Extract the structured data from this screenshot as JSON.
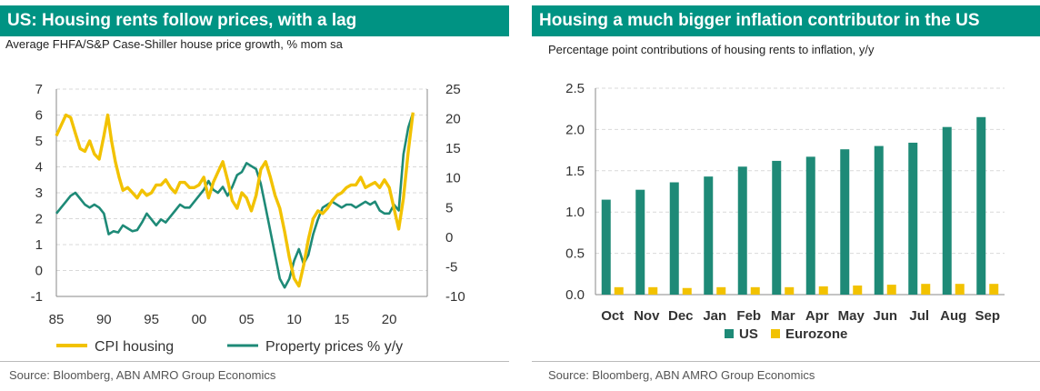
{
  "colors": {
    "teal": "#1e8a77",
    "yellow": "#f2c200",
    "title_bg": "#009383"
  },
  "left": {
    "title": "US: Housing rents follow prices, with a lag",
    "subtitle": "Average FHFA/S&P Case-Shiller house price growth, % mom sa",
    "source": "Source: Bloomberg, ABN AMRO Group Economics"
  },
  "right": {
    "title": "Housing a much bigger inflation contributor in the US",
    "subtitle": "Percentage point contributions of housing rents to inflation, y/y",
    "source": "Source:  Bloomberg, ABN AMRO Group Economics"
  },
  "chart_data": [
    {
      "type": "line",
      "x_ticks": [
        "85",
        "90",
        "95",
        "00",
        "05",
        "10",
        "15",
        "20"
      ],
      "xlim": [
        1985,
        2024
      ],
      "y_left_ticks": [
        "7",
        "6",
        "5",
        "4",
        "3",
        "2",
        "1",
        "0",
        "-1"
      ],
      "ylim_left": [
        -1,
        7
      ],
      "y_right_ticks": [
        "25",
        "20",
        "15",
        "10",
        "5",
        "0",
        "-5",
        "-10"
      ],
      "ylim_right": [
        -10,
        25
      ],
      "series": [
        {
          "name": "CPI housing",
          "axis": "left",
          "color": "#f2c200",
          "points": [
            [
              1985.0,
              5.2
            ],
            [
              1985.5,
              5.6
            ],
            [
              1986.0,
              6.0
            ],
            [
              1986.5,
              5.9
            ],
            [
              1987.0,
              5.3
            ],
            [
              1987.5,
              4.7
            ],
            [
              1988.0,
              4.6
            ],
            [
              1988.5,
              5.0
            ],
            [
              1989.0,
              4.5
            ],
            [
              1989.5,
              4.3
            ],
            [
              1990.0,
              5.2
            ],
            [
              1990.4,
              6.0
            ],
            [
              1990.8,
              5.0
            ],
            [
              1991.2,
              4.2
            ],
            [
              1991.6,
              3.6
            ],
            [
              1992.0,
              3.1
            ],
            [
              1992.5,
              3.2
            ],
            [
              1993.0,
              3.0
            ],
            [
              1993.5,
              2.8
            ],
            [
              1994.0,
              3.1
            ],
            [
              1994.5,
              2.9
            ],
            [
              1995.0,
              3.0
            ],
            [
              1995.5,
              3.3
            ],
            [
              1996.0,
              3.3
            ],
            [
              1996.5,
              3.5
            ],
            [
              1997.0,
              3.2
            ],
            [
              1997.5,
              3.0
            ],
            [
              1998.0,
              3.4
            ],
            [
              1998.5,
              3.4
            ],
            [
              1999.0,
              3.2
            ],
            [
              1999.5,
              3.2
            ],
            [
              2000.0,
              3.3
            ],
            [
              2000.5,
              3.6
            ],
            [
              2001.0,
              2.8
            ],
            [
              2001.5,
              3.4
            ],
            [
              2002.0,
              3.8
            ],
            [
              2002.5,
              4.2
            ],
            [
              2003.0,
              3.5
            ],
            [
              2003.5,
              2.7
            ],
            [
              2004.0,
              2.4
            ],
            [
              2004.5,
              3.0
            ],
            [
              2005.0,
              2.8
            ],
            [
              2005.5,
              2.3
            ],
            [
              2006.0,
              2.9
            ],
            [
              2006.5,
              3.9
            ],
            [
              2007.0,
              4.2
            ],
            [
              2007.5,
              3.6
            ],
            [
              2008.0,
              2.9
            ],
            [
              2008.5,
              2.4
            ],
            [
              2009.0,
              1.5
            ],
            [
              2009.5,
              0.5
            ],
            [
              2010.0,
              -0.3
            ],
            [
              2010.5,
              -0.6
            ],
            [
              2011.0,
              0.2
            ],
            [
              2011.5,
              1.2
            ],
            [
              2012.0,
              2.0
            ],
            [
              2012.5,
              2.3
            ],
            [
              2013.0,
              2.2
            ],
            [
              2013.5,
              2.4
            ],
            [
              2014.0,
              2.7
            ],
            [
              2014.5,
              2.9
            ],
            [
              2015.0,
              3.0
            ],
            [
              2015.5,
              3.2
            ],
            [
              2016.0,
              3.3
            ],
            [
              2016.5,
              3.3
            ],
            [
              2017.0,
              3.6
            ],
            [
              2017.5,
              3.2
            ],
            [
              2018.0,
              3.3
            ],
            [
              2018.5,
              3.4
            ],
            [
              2019.0,
              3.2
            ],
            [
              2019.5,
              3.5
            ],
            [
              2020.0,
              3.2
            ],
            [
              2020.5,
              2.4
            ],
            [
              2021.0,
              1.6
            ],
            [
              2021.5,
              2.8
            ],
            [
              2022.0,
              4.6
            ],
            [
              2022.5,
              6.1
            ]
          ]
        },
        {
          "name": "Property prices % y/y",
          "axis": "right",
          "color": "#1e8a77",
          "points": [
            [
              1985.0,
              4.0
            ],
            [
              1985.5,
              5.0
            ],
            [
              1986.0,
              6.0
            ],
            [
              1986.5,
              7.0
            ],
            [
              1987.0,
              7.5
            ],
            [
              1987.5,
              6.5
            ],
            [
              1988.0,
              5.5
            ],
            [
              1988.5,
              5.0
            ],
            [
              1989.0,
              5.5
            ],
            [
              1989.5,
              5.0
            ],
            [
              1990.0,
              4.0
            ],
            [
              1990.5,
              0.5
            ],
            [
              1991.0,
              1.0
            ],
            [
              1991.5,
              0.8
            ],
            [
              1992.0,
              2.0
            ],
            [
              1992.5,
              1.5
            ],
            [
              1993.0,
              1.0
            ],
            [
              1993.5,
              1.2
            ],
            [
              1994.0,
              2.5
            ],
            [
              1994.5,
              4.0
            ],
            [
              1995.0,
              3.0
            ],
            [
              1995.5,
              2.0
            ],
            [
              1996.0,
              3.0
            ],
            [
              1996.5,
              2.5
            ],
            [
              1997.0,
              3.5
            ],
            [
              1997.5,
              4.5
            ],
            [
              1998.0,
              5.5
            ],
            [
              1998.5,
              5.0
            ],
            [
              1999.0,
              5.0
            ],
            [
              1999.5,
              6.0
            ],
            [
              2000.0,
              7.0
            ],
            [
              2000.5,
              8.0
            ],
            [
              2001.0,
              9.5
            ],
            [
              2001.5,
              8.0
            ],
            [
              2002.0,
              7.5
            ],
            [
              2002.5,
              8.5
            ],
            [
              2003.0,
              7.0
            ],
            [
              2003.5,
              8.5
            ],
            [
              2004.0,
              10.5
            ],
            [
              2004.5,
              11.0
            ],
            [
              2005.0,
              12.5
            ],
            [
              2005.5,
              12.0
            ],
            [
              2006.0,
              11.5
            ],
            [
              2006.5,
              9.0
            ],
            [
              2007.0,
              5.0
            ],
            [
              2007.5,
              1.0
            ],
            [
              2008.0,
              -3.0
            ],
            [
              2008.5,
              -7.0
            ],
            [
              2009.0,
              -8.5
            ],
            [
              2009.5,
              -7.0
            ],
            [
              2010.0,
              -4.0
            ],
            [
              2010.5,
              -2.0
            ],
            [
              2011.0,
              -4.5
            ],
            [
              2011.5,
              -3.0
            ],
            [
              2012.0,
              0.5
            ],
            [
              2012.5,
              3.0
            ],
            [
              2013.0,
              5.0
            ],
            [
              2013.5,
              5.5
            ],
            [
              2014.0,
              6.0
            ],
            [
              2014.5,
              5.5
            ],
            [
              2015.0,
              5.0
            ],
            [
              2015.5,
              5.5
            ],
            [
              2016.0,
              5.5
            ],
            [
              2016.5,
              5.0
            ],
            [
              2017.0,
              5.5
            ],
            [
              2017.5,
              6.0
            ],
            [
              2018.0,
              5.5
            ],
            [
              2018.5,
              6.0
            ],
            [
              2019.0,
              4.5
            ],
            [
              2019.5,
              4.0
            ],
            [
              2020.0,
              4.0
            ],
            [
              2020.5,
              5.5
            ],
            [
              2021.0,
              4.5
            ],
            [
              2021.5,
              14.0
            ],
            [
              2022.0,
              18.5
            ],
            [
              2022.5,
              21.0
            ]
          ]
        }
      ]
    },
    {
      "type": "bar",
      "categories": [
        "Oct",
        "Nov",
        "Dec",
        "Jan",
        "Feb",
        "Mar",
        "Apr",
        "May",
        "Jun",
        "Jul",
        "Aug",
        "Sep"
      ],
      "y_ticks": [
        "2.5",
        "2.0",
        "1.5",
        "1.0",
        "0.5",
        "0.0"
      ],
      "ylim": [
        0,
        2.5
      ],
      "series": [
        {
          "name": "US",
          "color": "#1e8a77",
          "values": [
            1.15,
            1.27,
            1.36,
            1.43,
            1.55,
            1.62,
            1.67,
            1.76,
            1.8,
            1.84,
            2.03,
            2.15
          ]
        },
        {
          "name": "Eurozone",
          "color": "#f2c200",
          "values": [
            0.09,
            0.09,
            0.08,
            0.09,
            0.09,
            0.09,
            0.1,
            0.11,
            0.12,
            0.13,
            0.13,
            0.13
          ]
        }
      ]
    }
  ]
}
